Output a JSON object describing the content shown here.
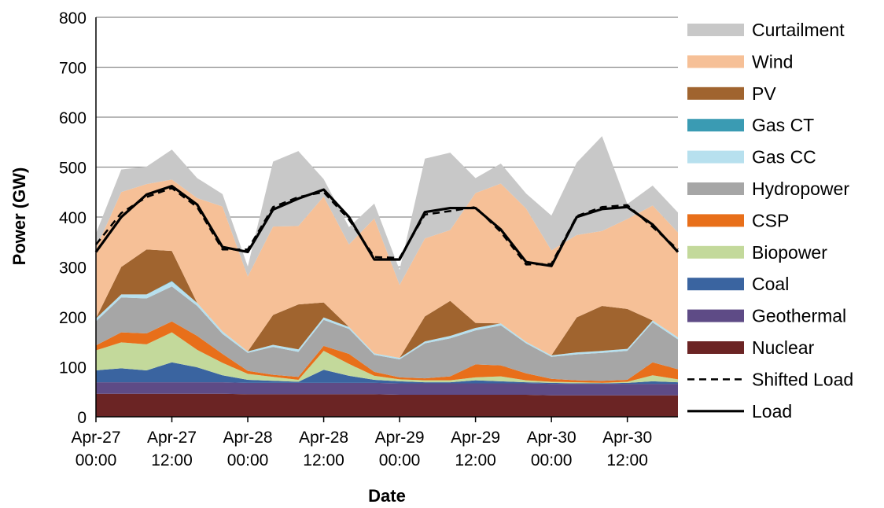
{
  "chart_data": {
    "type": "area",
    "title": "",
    "xlabel": "Date",
    "ylabel": "Power (GW)",
    "ylim": [
      0,
      800
    ],
    "xlim": [
      "2050-04-27 00:00",
      "2050-04-30 20:00"
    ],
    "grid": "horizontal",
    "legend_position": "right",
    "y_ticks": [
      "0",
      "100",
      "200",
      "300",
      "400",
      "500",
      "600",
      "700",
      "800"
    ],
    "x_ticks": [
      {
        "line1": "Apr-27",
        "line2": "00:00"
      },
      {
        "line1": "Apr-27",
        "line2": "12:00"
      },
      {
        "line1": "Apr-28",
        "line2": "00:00"
      },
      {
        "line1": "Apr-28",
        "line2": "12:00"
      },
      {
        "line1": "Apr-29",
        "line2": "00:00"
      },
      {
        "line1": "Apr-29",
        "line2": "12:00"
      },
      {
        "line1": "Apr-30",
        "line2": "00:00"
      },
      {
        "line1": "Apr-30",
        "line2": "12:00"
      }
    ],
    "x": [
      "Apr-27 00:00",
      "Apr-27 04:00",
      "Apr-27 08:00",
      "Apr-27 12:00",
      "Apr-27 16:00",
      "Apr-27 20:00",
      "Apr-28 00:00",
      "Apr-28 04:00",
      "Apr-28 08:00",
      "Apr-28 12:00",
      "Apr-28 16:00",
      "Apr-28 20:00",
      "Apr-29 00:00",
      "Apr-29 04:00",
      "Apr-29 08:00",
      "Apr-29 12:00",
      "Apr-29 16:00",
      "Apr-29 20:00",
      "Apr-30 00:00",
      "Apr-30 04:00",
      "Apr-30 08:00",
      "Apr-30 12:00",
      "Apr-30 16:00",
      "Apr-30 20:00"
    ],
    "series": [
      {
        "name": "Nuclear",
        "color": "#6b2424",
        "values": [
          46,
          46,
          46,
          46,
          46,
          46,
          45,
          45,
          45,
          45,
          45,
          45,
          44,
          44,
          44,
          44,
          44,
          44,
          43,
          43,
          43,
          43,
          43,
          43
        ]
      },
      {
        "name": "Geothermal",
        "color": "#5e4b86",
        "values": [
          23,
          23,
          23,
          23,
          23,
          23,
          23,
          23,
          23,
          23,
          23,
          23,
          23,
          23,
          23,
          23,
          23,
          23,
          23,
          23,
          23,
          23,
          23,
          23
        ]
      },
      {
        "name": "Coal",
        "color": "#3a64a0",
        "values": [
          24,
          28,
          24,
          40,
          30,
          14,
          6,
          4,
          2,
          26,
          14,
          6,
          4,
          2,
          2,
          6,
          4,
          2,
          2,
          1,
          1,
          2,
          5,
          3
        ]
      },
      {
        "name": "Biopower",
        "color": "#c3d99b",
        "values": [
          40,
          52,
          52,
          60,
          35,
          25,
          12,
          8,
          4,
          38,
          24,
          8,
          4,
          4,
          4,
          6,
          10,
          4,
          2,
          2,
          1,
          2,
          12,
          6
        ]
      },
      {
        "name": "CSP",
        "color": "#e86f1a",
        "values": [
          10,
          20,
          22,
          22,
          28,
          18,
          6,
          4,
          6,
          10,
          20,
          8,
          4,
          4,
          8,
          26,
          22,
          14,
          6,
          4,
          4,
          4,
          26,
          20
        ]
      },
      {
        "name": "Hydropower",
        "color": "#a6a6a6",
        "values": [
          48,
          70,
          70,
          70,
          60,
          40,
          36,
          56,
          50,
          52,
          50,
          34,
          36,
          70,
          76,
          68,
          80,
          60,
          44,
          52,
          56,
          58,
          80,
          60
        ]
      },
      {
        "name": "Gas CC",
        "color": "#b7e0ee",
        "values": [
          6,
          6,
          8,
          10,
          6,
          5,
          3,
          4,
          5,
          5,
          4,
          3,
          3,
          4,
          5,
          5,
          4,
          3,
          3,
          4,
          4,
          4,
          4,
          4
        ]
      },
      {
        "name": "Gas CT",
        "color": "#3a9bb3",
        "values": [
          0,
          0,
          0,
          1,
          0,
          0,
          0,
          0,
          0,
          0,
          0,
          0,
          0,
          0,
          0,
          0,
          0,
          0,
          0,
          0,
          0,
          0,
          0,
          0
        ]
      },
      {
        "name": "PV",
        "color": "#a0642f",
        "values": [
          0,
          55,
          90,
          60,
          0,
          0,
          0,
          60,
          90,
          30,
          0,
          0,
          0,
          50,
          70,
          10,
          0,
          0,
          0,
          70,
          90,
          80,
          0,
          0
        ]
      },
      {
        "name": "Wind",
        "color": "#f6c097",
        "values": [
          140,
          150,
          131,
          143,
          210,
          250,
          150,
          177,
          157,
          212,
          165,
          270,
          146,
          156,
          142,
          260,
          280,
          267,
          210,
          165,
          150,
          180,
          230,
          210
        ]
      },
      {
        "name": "Curtailment",
        "color": "#c8c8c8",
        "values": [
          30,
          45,
          35,
          60,
          40,
          25,
          20,
          130,
          150,
          35,
          35,
          30,
          30,
          160,
          155,
          30,
          40,
          30,
          70,
          145,
          190,
          30,
          40,
          40
        ]
      }
    ],
    "lines": [
      {
        "name": "Shifted Load",
        "style": "dashed",
        "values": [
          345,
          408,
          440,
          458,
          420,
          335,
          335,
          420,
          440,
          450,
          395,
          320,
          318,
          405,
          412,
          420,
          370,
          305,
          306,
          402,
          420,
          424,
          380,
          335
        ]
      },
      {
        "name": "Load",
        "style": "solid",
        "values": [
          330,
          400,
          445,
          462,
          425,
          340,
          330,
          415,
          437,
          455,
          400,
          315,
          315,
          410,
          418,
          418,
          375,
          310,
          302,
          400,
          416,
          420,
          385,
          330
        ]
      }
    ],
    "legend": [
      "Curtailment",
      "Wind",
      "PV",
      "Gas CT",
      "Gas CC",
      "Hydropower",
      "CSP",
      "Biopower",
      "Coal",
      "Geothermal",
      "Nuclear",
      "Shifted Load",
      "Load"
    ]
  }
}
